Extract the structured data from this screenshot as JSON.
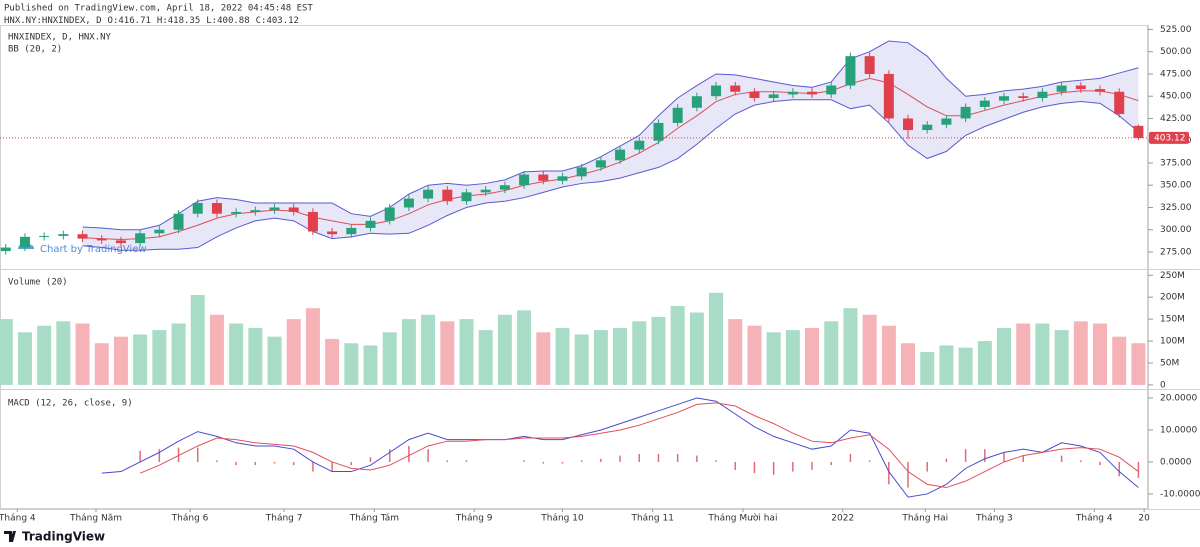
{
  "header": {
    "published": "Published on TradingView.com, April 18, 2022 04:45:48 EST",
    "symbol": "HNX.NY:HNXINDEX, D",
    "ohlc_labels": [
      "O:",
      "H:",
      "L:",
      "C:"
    ]
  },
  "chart_data": [
    {
      "type": "candlestick",
      "title": "HNXINDEX, D, HNX.NY",
      "indicator": "BB (20, 2)",
      "x": [
        0,
        1,
        2,
        3,
        4,
        5,
        6,
        7,
        8,
        9,
        10,
        11,
        12,
        13,
        14,
        15,
        16,
        17,
        18,
        19,
        20,
        21,
        22,
        23,
        24,
        25,
        26,
        27,
        28,
        29,
        30,
        31,
        32,
        33,
        34,
        35,
        36,
        37,
        38,
        39,
        40,
        41,
        42,
        43,
        44,
        45,
        46,
        47,
        48,
        49,
        50,
        51,
        52,
        53,
        54,
        55,
        56,
        57,
        58,
        59
      ],
      "open": [
        276,
        280,
        292,
        293,
        295,
        290,
        288,
        285,
        296,
        300,
        318,
        330,
        318,
        320,
        322,
        325,
        320,
        298,
        295,
        302,
        310,
        325,
        335,
        345,
        332,
        342,
        345,
        350,
        362,
        355,
        360,
        370,
        378,
        390,
        400,
        420,
        437,
        450,
        462,
        455,
        448,
        452,
        455,
        452,
        462,
        495,
        475,
        425,
        412,
        418,
        425,
        438,
        445,
        450,
        448,
        455,
        462,
        458,
        455,
        416.71
      ],
      "high": [
        284,
        296,
        297,
        299,
        299,
        294,
        292,
        300,
        304,
        322,
        334,
        334,
        324,
        326,
        329,
        329,
        324,
        302,
        306,
        314,
        329,
        339,
        349,
        349,
        346,
        349,
        354,
        366,
        366,
        364,
        374,
        382,
        394,
        404,
        424,
        441,
        454,
        466,
        466,
        459,
        456,
        459,
        459,
        466,
        499,
        499,
        479,
        429,
        422,
        429,
        442,
        449,
        454,
        454,
        459,
        466,
        466,
        462,
        459,
        418.35
      ],
      "low": [
        272,
        276,
        288,
        289,
        286,
        284,
        281,
        281,
        292,
        296,
        314,
        314,
        314,
        316,
        318,
        316,
        294,
        291,
        291,
        298,
        306,
        321,
        331,
        328,
        328,
        338,
        341,
        346,
        351,
        351,
        356,
        366,
        374,
        386,
        396,
        416,
        433,
        446,
        451,
        444,
        444,
        448,
        448,
        448,
        458,
        471,
        421,
        402,
        408,
        414,
        421,
        434,
        441,
        444,
        444,
        451,
        454,
        451,
        426,
        400.88
      ],
      "close": [
        280,
        292,
        293,
        295,
        290,
        288,
        285,
        296,
        300,
        318,
        330,
        318,
        320,
        322,
        325,
        320,
        298,
        295,
        302,
        310,
        325,
        335,
        345,
        332,
        342,
        345,
        350,
        362,
        355,
        360,
        370,
        378,
        390,
        400,
        420,
        437,
        450,
        462,
        455,
        448,
        452,
        455,
        452,
        462,
        495,
        475,
        425,
        412,
        418,
        425,
        438,
        445,
        450,
        448,
        455,
        462,
        458,
        455,
        430,
        403.12
      ],
      "up_color": "#26a17a",
      "down_color": "#e0404c",
      "bands": {
        "upper": [
          null,
          null,
          null,
          null,
          303,
          302,
          300,
          300,
          305,
          318,
          332,
          336,
          334,
          330,
          330,
          330,
          330,
          330,
          318,
          315,
          325,
          340,
          350,
          352,
          350,
          352,
          356,
          365,
          366,
          366,
          372,
          382,
          394,
          406,
          428,
          448,
          462,
          475,
          474,
          470,
          466,
          462,
          460,
          466,
          492,
          500,
          512,
          510,
          495,
          470,
          450,
          452,
          456,
          458,
          461,
          466,
          468,
          470,
          476,
          482
        ],
        "basis": [
          null,
          null,
          null,
          null,
          291,
          290,
          289,
          290,
          292,
          298,
          305,
          313,
          318,
          320,
          322,
          321,
          314,
          310,
          306,
          306,
          310,
          318,
          328,
          334,
          338,
          340,
          344,
          350,
          354,
          357,
          362,
          368,
          376,
          386,
          398,
          414,
          428,
          444,
          452,
          455,
          455,
          454,
          453,
          456,
          464,
          470,
          465,
          452,
          438,
          428,
          428,
          434,
          440,
          445,
          450,
          454,
          456,
          456,
          452,
          445
        ],
        "lower": [
          null,
          null,
          null,
          null,
          282,
          280,
          277,
          277,
          278,
          278,
          280,
          292,
          302,
          310,
          313,
          310,
          298,
          290,
          292,
          296,
          295,
          296,
          305,
          316,
          325,
          330,
          332,
          336,
          342,
          348,
          352,
          354,
          358,
          364,
          370,
          380,
          396,
          414,
          430,
          440,
          444,
          446,
          446,
          446,
          436,
          440,
          420,
          395,
          380,
          388,
          406,
          416,
          424,
          432,
          438,
          442,
          444,
          442,
          428,
          410
        ],
        "line_color": "#5a5ad2",
        "basis_color": "#d9505a",
        "fill": "rgba(120,120,215,0.18)"
      },
      "ylim": [
        257,
        530
      ],
      "yticks": [
        {
          "value": 275,
          "label": "275.00"
        },
        {
          "value": 300,
          "label": "300.00"
        },
        {
          "value": 325,
          "label": "325.00"
        },
        {
          "value": 350,
          "label": "350.00"
        },
        {
          "value": 375,
          "label": "375.00"
        },
        {
          "value": 400,
          "label": "400.00"
        },
        {
          "value": 425,
          "label": "425.00"
        },
        {
          "value": 450,
          "label": "450.00"
        },
        {
          "value": 475,
          "label": "475.00"
        },
        {
          "value": 500,
          "label": "500.00"
        },
        {
          "value": 525,
          "label": "525.00"
        }
      ],
      "last_price_line": true,
      "last_price_color": "#e0404c"
    },
    {
      "type": "bar",
      "title": "Volume (20)",
      "values": [
        150,
        120,
        135,
        145,
        140,
        95,
        110,
        115,
        125,
        140,
        205,
        160,
        140,
        130,
        110,
        150,
        175,
        105,
        95,
        90,
        120,
        150,
        160,
        145,
        150,
        125,
        160,
        170,
        120,
        130,
        115,
        125,
        130,
        145,
        155,
        180,
        165,
        210,
        150,
        135,
        120,
        125,
        130,
        145,
        175,
        160,
        135,
        95,
        75,
        90,
        85,
        100,
        130,
        140,
        140,
        125,
        145,
        140,
        110,
        95
      ],
      "up_color": "#a8dcc6",
      "down_color": "#f5b3b8",
      "ylim": [
        -7,
        262
      ],
      "yticks": [
        {
          "value": 0,
          "label": "0"
        },
        {
          "value": 50,
          "label": "50M"
        },
        {
          "value": 100,
          "label": "100M"
        },
        {
          "value": 150,
          "label": "150M"
        },
        {
          "value": 200,
          "label": "200M"
        },
        {
          "value": 250,
          "label": "250M"
        }
      ]
    },
    {
      "type": "line",
      "title": "MACD (12, 26, close, 9)",
      "series": [
        {
          "color": "#4a4ad0",
          "values": [
            null,
            null,
            null,
            null,
            null,
            -3.5,
            -3,
            0,
            3,
            6.5,
            9.5,
            8,
            6,
            5,
            5,
            4,
            0,
            -3,
            -3,
            -1,
            3,
            7,
            9,
            7,
            7,
            7,
            7,
            8,
            7,
            7,
            8.5,
            10,
            12,
            14,
            16,
            18,
            20,
            19,
            15,
            11,
            8,
            6,
            4,
            5,
            10,
            9,
            -3,
            -11,
            -10,
            -7,
            -2,
            1,
            3,
            4,
            3,
            6,
            5,
            3,
            -3,
            -8
          ]
        },
        {
          "color": "#e0505a",
          "values": [
            null,
            null,
            null,
            null,
            null,
            null,
            null,
            -3.5,
            -1,
            2,
            5,
            7.5,
            7,
            6,
            5.5,
            5,
            3,
            0,
            -2,
            -2.5,
            -1,
            2,
            5,
            6.5,
            6.5,
            7,
            7,
            7.5,
            7.5,
            7.5,
            8,
            9,
            10,
            11.5,
            13.5,
            15.5,
            18,
            18.5,
            17.5,
            14.5,
            12,
            9,
            6.5,
            6,
            7.5,
            8.5,
            4,
            -3,
            -7,
            -8,
            -6,
            -3,
            0,
            2,
            3,
            4,
            4.5,
            4,
            1.5,
            -3
          ]
        }
      ],
      "histogram": {
        "color": "#e26a78",
        "values": [
          null,
          null,
          null,
          null,
          null,
          null,
          null,
          3.5,
          4,
          4.5,
          4.5,
          0.5,
          -1,
          -1,
          -0.5,
          -1,
          -3,
          -3,
          -1,
          1.5,
          4,
          5,
          4,
          0.5,
          0.5,
          0,
          0,
          0.5,
          -0.5,
          -0.5,
          0.5,
          1,
          2,
          2.5,
          2.5,
          2.5,
          2,
          0.5,
          -2.5,
          -3.5,
          -4,
          -3,
          -2.5,
          -1,
          2.5,
          0.5,
          -7,
          -8,
          -3,
          1,
          4,
          4,
          3,
          2,
          0,
          2,
          0.5,
          -1,
          -4.5,
          -5
        ]
      },
      "ylim": [
        -14.4,
        22.2
      ],
      "yticks": [
        {
          "value": -10,
          "label": "-10.0000"
        },
        {
          "value": 0,
          "label": "0.0000"
        },
        {
          "value": 10,
          "label": "10.0000"
        },
        {
          "value": 20,
          "label": "20.0000"
        }
      ],
      "xlim": [
        -0.3,
        59.5
      ],
      "xticks": [
        {
          "value": 0.6,
          "label": "Tháng 4"
        },
        {
          "value": 4.7,
          "label": "Tháng Năm"
        },
        {
          "value": 9.6,
          "label": "Tháng 6"
        },
        {
          "value": 14.5,
          "label": "Tháng 7"
        },
        {
          "value": 19.2,
          "label": "Tháng Tám"
        },
        {
          "value": 24.4,
          "label": "Tháng 9"
        },
        {
          "value": 29,
          "label": "Tháng 10"
        },
        {
          "value": 33.7,
          "label": "Tháng 11"
        },
        {
          "value": 38.4,
          "label": "Tháng Mười hai"
        },
        {
          "value": 43.6,
          "label": "2022"
        },
        {
          "value": 47.9,
          "label": "Tháng Hai"
        },
        {
          "value": 51.5,
          "label": "Tháng 3"
        },
        {
          "value": 56.7,
          "label": "Tháng 4"
        },
        {
          "value": 59.3,
          "label": "20"
        }
      ]
    }
  ],
  "footer": {
    "watermark": "Chart by TradingView",
    "brand": "TradingView"
  }
}
